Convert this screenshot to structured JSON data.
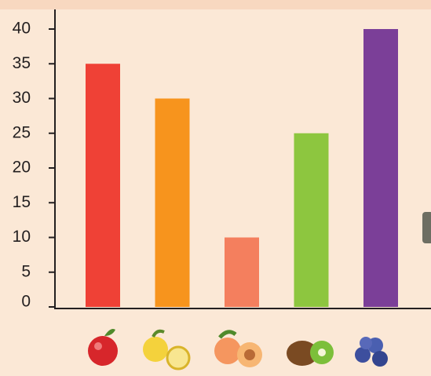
{
  "chart_data": {
    "type": "bar",
    "categories": [
      null,
      null,
      null,
      null,
      null
    ],
    "values": [
      35,
      30,
      10,
      25,
      40
    ],
    "colors": [
      "#ef4136",
      "#f7941d",
      "#f47f5e",
      "#8dc63f",
      "#7b3f98"
    ],
    "ylim": [
      0,
      40
    ],
    "yticks": [
      0,
      5,
      10,
      15,
      20,
      25,
      30,
      35,
      40
    ]
  }
}
